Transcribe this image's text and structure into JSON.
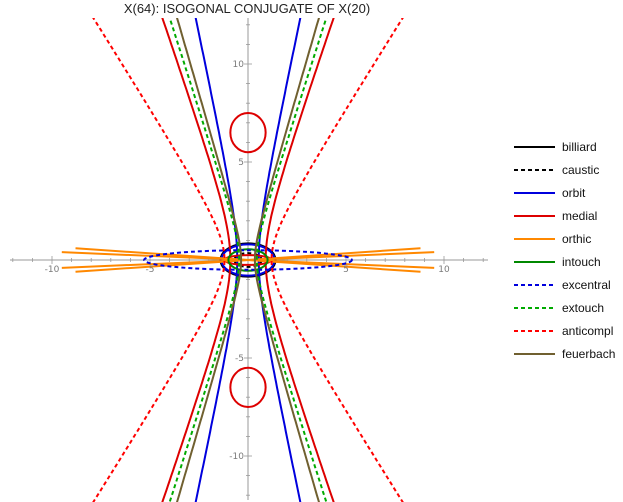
{
  "chart_data": {
    "type": "line",
    "title": "X(64): ISOGONAL CONJUGATE OF X(20)",
    "x_ticks": [
      "-10",
      "-5",
      "5",
      "10"
    ],
    "y_ticks": [
      "10",
      "5",
      "-5",
      "-10"
    ],
    "xlim": [
      -12,
      12
    ],
    "ylim": [
      -12,
      12
    ],
    "grid": false,
    "legend_position": "right",
    "series": [
      {
        "name": "billiard",
        "color": "#000000",
        "dash": "solid",
        "kind": "ellipse",
        "a": 1.4,
        "b": 0.85
      },
      {
        "name": "caustic",
        "color": "#000000",
        "dash": "dashed",
        "kind": "ellipse",
        "a": 0.7,
        "b": 0.35
      },
      {
        "name": "orbit",
        "color": "#0000dd",
        "dash": "solid",
        "kind": "hyperbola",
        "a": 0.55,
        "b": 2.6,
        "extra": {
          "a": 1.35,
          "b": 0.8
        }
      },
      {
        "name": "medial",
        "color": "#dd0000",
        "dash": "solid",
        "kind": "hyperbola",
        "a": 0.9,
        "b": 2.6,
        "extra": {
          "a": 1.2,
          "b": 0.25
        }
      },
      {
        "name": "orthic",
        "color": "#ff8800",
        "dash": "solid",
        "kind": "wings",
        "a": 2.0,
        "b": 2.6
      },
      {
        "name": "intouch",
        "color": "#008800",
        "dash": "solid",
        "kind": "ellipse",
        "a": 1.0,
        "b": 0.55
      },
      {
        "name": "excentral",
        "color": "#0000dd",
        "dash": "dashed",
        "kind": "ellipse",
        "a": 5.3,
        "b": 0.5
      },
      {
        "name": "extouch",
        "color": "#00aa00",
        "dash": "dashed",
        "kind": "hyperbola",
        "a": 0.45,
        "b": 1.4
      },
      {
        "name": "anticompl",
        "color": "#ff0000",
        "dash": "dashed",
        "kind": "hyperbola",
        "a": 1.2,
        "b": 1.9
      },
      {
        "name": "feuerbach",
        "color": "#706030",
        "dash": "solid",
        "kind": "hyperbola",
        "a": 0.35,
        "b": 1.2
      }
    ]
  }
}
